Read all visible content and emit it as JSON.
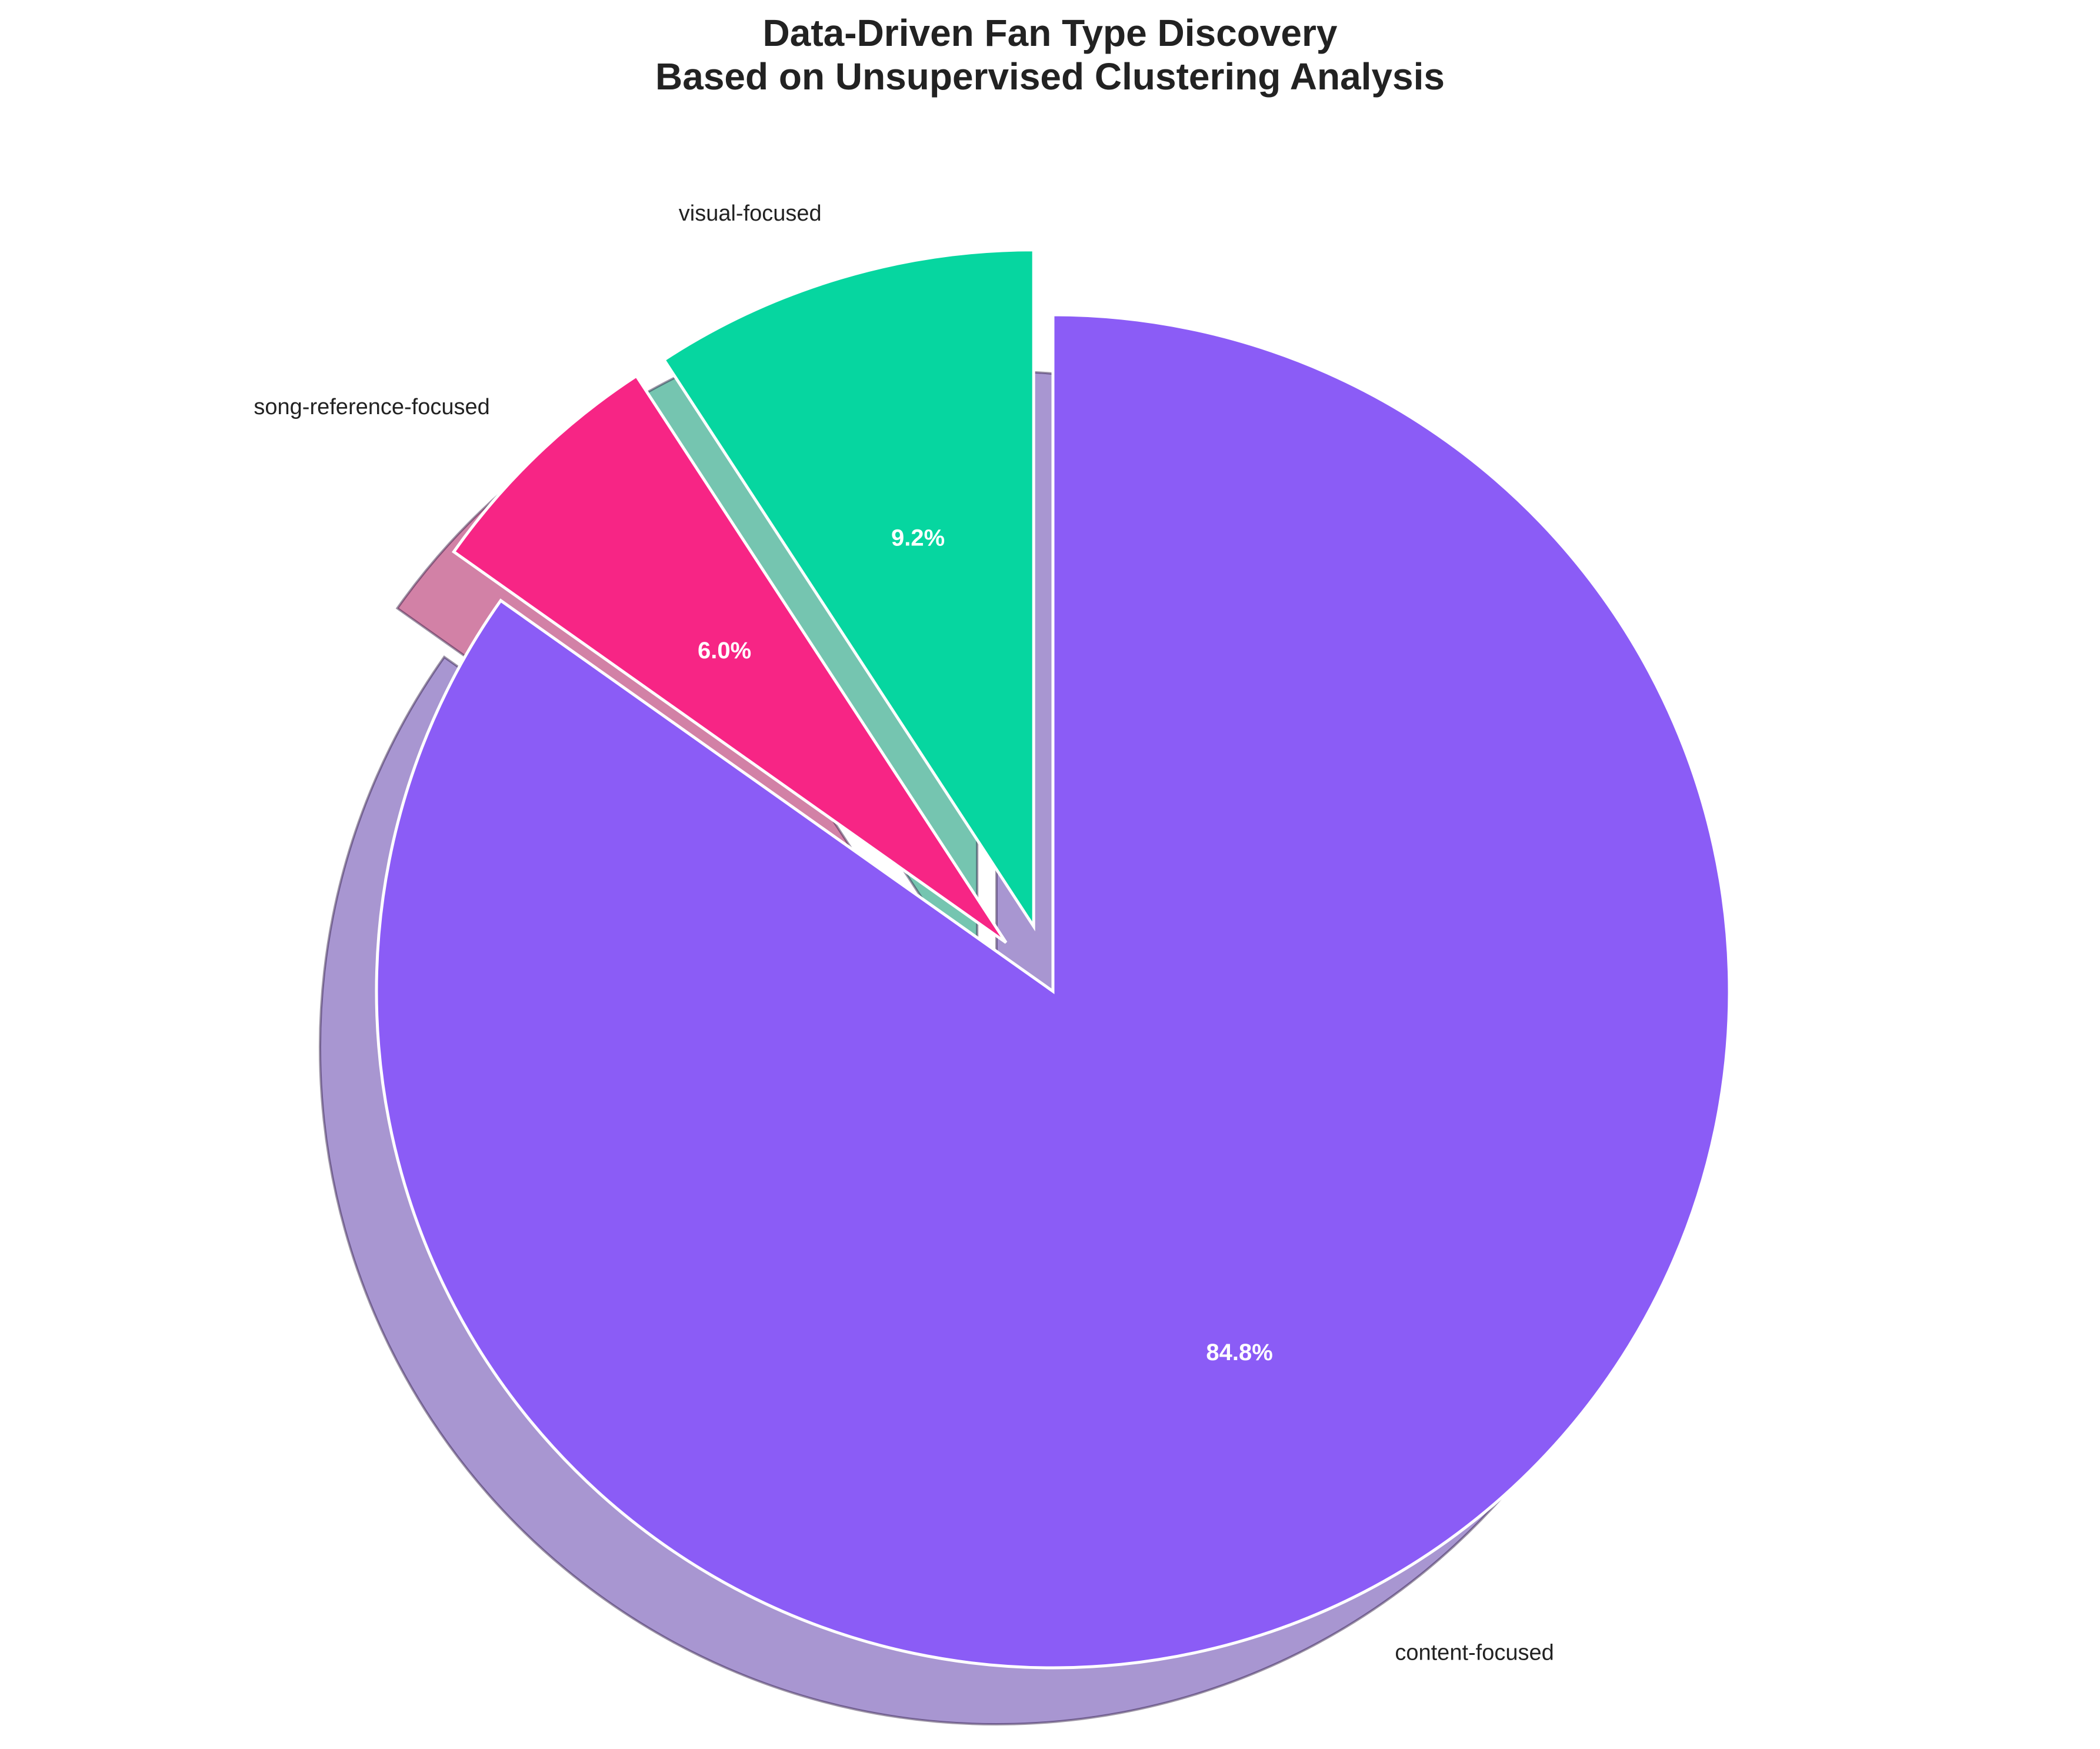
{
  "chart_data": {
    "type": "pie",
    "title": "Data-Driven Fan Type Discovery",
    "subtitle": "Based on Unsupervised Clustering Analysis",
    "categories": [
      "content-focused",
      "song-reference-focused",
      "visual-focused"
    ],
    "values": [
      84.8,
      6.0,
      9.2
    ],
    "value_labels": [
      "84.8%",
      "6.0%",
      "9.2%"
    ],
    "colors": [
      "#8b5cf6",
      "#f72585",
      "#06d6a0"
    ],
    "start_angle_deg": 90,
    "direction": "clockwise",
    "exploded": [
      false,
      true,
      true
    ],
    "shadow": true
  }
}
